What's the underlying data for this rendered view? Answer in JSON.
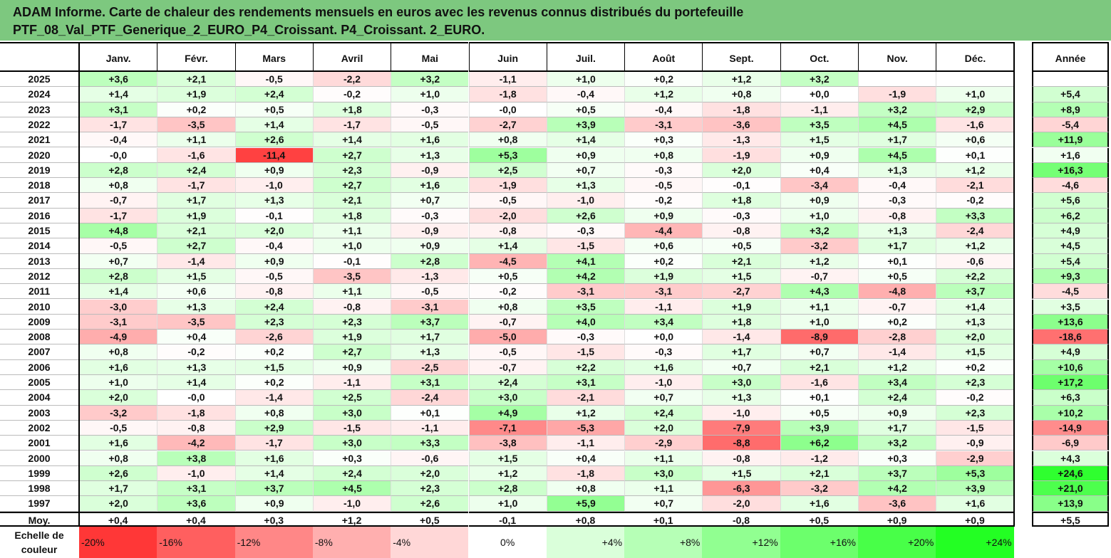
{
  "header": {
    "title_line1": "ADAM Informe. Carte de chaleur des rendements mensuels en euros avec les revenus connus distribués du portefeuille",
    "title_line2": "PTF_08_Val_PTF_Generique_2_EURO_P4_Croissant. P4_Croissant. 2_EURO."
  },
  "chart_data": {
    "type": "heatmap",
    "columns": [
      "Janv.",
      "Févr.",
      "Mars",
      "Avril",
      "Mai",
      "Juin",
      "Juil.",
      "Août",
      "Sept.",
      "Oct.",
      "Nov.",
      "Déc."
    ],
    "annual_label": "Année",
    "rows": [
      {
        "year": "2025",
        "m": [
          "+3,6",
          "+2,1",
          "-0,5",
          "-2,2",
          "+3,2",
          "-1,1",
          "+1,0",
          "+0,2",
          "+1,2",
          "+3,2",
          "",
          ""
        ],
        "y": ""
      },
      {
        "year": "2024",
        "m": [
          "+1,4",
          "+1,9",
          "+2,4",
          "-0,2",
          "+1,0",
          "-1,8",
          "-0,4",
          "+1,2",
          "+0,8",
          "+0,0",
          "-1,9",
          "+1,0"
        ],
        "y": "+5,4"
      },
      {
        "year": "2023",
        "m": [
          "+3,1",
          "+0,2",
          "+0,5",
          "+1,8",
          "-0,3",
          "-0,0",
          "+0,5",
          "-0,4",
          "-1,8",
          "-1,1",
          "+3,2",
          "+2,9"
        ],
        "y": "+8,9"
      },
      {
        "year": "2022",
        "m": [
          "-1,7",
          "-3,5",
          "+1,4",
          "-1,7",
          "-0,5",
          "-2,7",
          "+3,9",
          "-3,1",
          "-3,6",
          "+3,5",
          "+4,5",
          "-1,6"
        ],
        "y": "-5,4"
      },
      {
        "year": "2021",
        "m": [
          "-0,4",
          "+1,1",
          "+2,6",
          "+1,4",
          "+1,6",
          "+0,8",
          "+1,4",
          "+0,3",
          "-1,3",
          "+1,5",
          "+1,7",
          "+0,6"
        ],
        "y": "+11,9"
      },
      {
        "year": "2020",
        "m": [
          "-0,0",
          "-1,6",
          "-11,4",
          "+2,7",
          "+1,3",
          "+5,3",
          "+0,9",
          "+0,8",
          "-1,9",
          "+0,9",
          "+4,5",
          "+0,1"
        ],
        "y": "+1,6"
      },
      {
        "year": "2019",
        "m": [
          "+2,8",
          "+2,4",
          "+0,9",
          "+2,3",
          "-0,9",
          "+2,5",
          "+0,7",
          "-0,3",
          "+2,0",
          "+0,4",
          "+1,3",
          "+1,2"
        ],
        "y": "+16,3"
      },
      {
        "year": "2018",
        "m": [
          "+0,8",
          "-1,7",
          "-1,0",
          "+2,7",
          "+1,6",
          "-1,9",
          "+1,3",
          "-0,5",
          "-0,1",
          "-3,4",
          "-0,4",
          "-2,1"
        ],
        "y": "-4,6"
      },
      {
        "year": "2017",
        "m": [
          "-0,7",
          "+1,7",
          "+1,3",
          "+2,1",
          "+0,7",
          "-0,5",
          "-1,0",
          "-0,2",
          "+1,8",
          "+0,9",
          "-0,3",
          "-0,2"
        ],
        "y": "+5,6"
      },
      {
        "year": "2016",
        "m": [
          "-1,7",
          "+1,9",
          "-0,1",
          "+1,8",
          "-0,3",
          "-2,0",
          "+2,6",
          "+0,9",
          "-0,3",
          "+1,0",
          "-0,8",
          "+3,3"
        ],
        "y": "+6,2"
      },
      {
        "year": "2015",
        "m": [
          "+4,8",
          "+2,1",
          "+2,0",
          "+1,1",
          "-0,9",
          "-0,8",
          "-0,3",
          "-4,4",
          "-0,8",
          "+3,2",
          "+1,3",
          "-2,4"
        ],
        "y": "+4,9"
      },
      {
        "year": "2014",
        "m": [
          "-0,5",
          "+2,7",
          "-0,4",
          "+1,0",
          "+0,9",
          "+1,4",
          "-1,5",
          "+0,6",
          "+0,5",
          "-3,2",
          "+1,7",
          "+1,2"
        ],
        "y": "+4,5"
      },
      {
        "year": "2013",
        "m": [
          "+0,7",
          "-1,4",
          "+0,9",
          "-0,1",
          "+2,8",
          "-4,5",
          "+4,1",
          "+0,2",
          "+2,1",
          "+1,2",
          "+0,1",
          "-0,6"
        ],
        "y": "+5,4"
      },
      {
        "year": "2012",
        "m": [
          "+2,8",
          "+1,5",
          "-0,5",
          "-3,5",
          "-1,3",
          "+0,5",
          "+4,2",
          "+1,9",
          "+1,5",
          "-0,7",
          "+0,5",
          "+2,2"
        ],
        "y": "+9,3"
      },
      {
        "year": "2011",
        "m": [
          "+1,4",
          "+0,6",
          "-0,8",
          "+1,1",
          "-0,5",
          "-0,2",
          "-3,1",
          "-3,1",
          "-2,7",
          "+4,3",
          "-4,8",
          "+3,7"
        ],
        "y": "-4,5"
      },
      {
        "year": "2010",
        "m": [
          "-3,0",
          "+1,3",
          "+2,4",
          "-0,8",
          "-3,1",
          "+0,8",
          "+3,5",
          "-1,1",
          "+1,9",
          "+1,1",
          "-0,7",
          "+1,4"
        ],
        "y": "+3,5"
      },
      {
        "year": "2009",
        "m": [
          "-3,1",
          "-3,5",
          "+2,3",
          "+2,3",
          "+3,7",
          "-0,7",
          "+4,0",
          "+3,4",
          "+1,8",
          "+1,0",
          "+0,2",
          "+1,3"
        ],
        "y": "+13,6"
      },
      {
        "year": "2008",
        "m": [
          "-4,9",
          "+0,4",
          "-2,6",
          "+1,9",
          "+1,7",
          "-5,0",
          "-0,3",
          "+0,0",
          "-1,4",
          "-8,9",
          "-2,8",
          "+2,0"
        ],
        "y": "-18,6"
      },
      {
        "year": "2007",
        "m": [
          "+0,8",
          "-0,2",
          "+0,2",
          "+2,7",
          "+1,3",
          "-0,5",
          "-1,5",
          "-0,3",
          "+1,7",
          "+0,7",
          "-1,4",
          "+1,5"
        ],
        "y": "+4,9"
      },
      {
        "year": "2006",
        "m": [
          "+1,6",
          "+1,3",
          "+1,5",
          "+0,9",
          "-2,5",
          "-0,7",
          "+2,2",
          "+1,6",
          "+0,7",
          "+2,1",
          "+1,2",
          "+0,2"
        ],
        "y": "+10,6"
      },
      {
        "year": "2005",
        "m": [
          "+1,0",
          "+1,4",
          "+0,2",
          "-1,1",
          "+3,1",
          "+2,4",
          "+3,1",
          "-1,0",
          "+3,0",
          "-1,6",
          "+3,4",
          "+2,3"
        ],
        "y": "+17,2"
      },
      {
        "year": "2004",
        "m": [
          "+2,0",
          "-0,0",
          "-1,4",
          "+2,5",
          "-2,4",
          "+3,0",
          "-2,1",
          "+0,7",
          "+1,3",
          "+0,1",
          "+2,4",
          "-0,2"
        ],
        "y": "+6,3"
      },
      {
        "year": "2003",
        "m": [
          "-3,2",
          "-1,8",
          "+0,8",
          "+3,0",
          "+0,1",
          "+4,9",
          "+1,2",
          "+2,4",
          "-1,0",
          "+0,5",
          "+0,9",
          "+2,3"
        ],
        "y": "+10,2"
      },
      {
        "year": "2002",
        "m": [
          "-0,5",
          "-0,8",
          "+2,9",
          "-1,5",
          "-1,1",
          "-7,1",
          "-5,3",
          "+2,0",
          "-7,9",
          "+3,9",
          "+1,7",
          "-1,5"
        ],
        "y": "-14,9"
      },
      {
        "year": "2001",
        "m": [
          "+1,6",
          "-4,2",
          "-1,7",
          "+3,0",
          "+3,3",
          "-3,8",
          "-1,1",
          "-2,9",
          "-8,8",
          "+6,2",
          "+3,2",
          "-0,9"
        ],
        "y": "-6,9"
      },
      {
        "year": "2000",
        "m": [
          "+0,8",
          "+3,8",
          "+1,6",
          "+0,3",
          "-0,6",
          "+1,5",
          "+0,4",
          "+1,1",
          "-0,8",
          "-1,2",
          "+0,3",
          "-2,9"
        ],
        "y": "+4,3"
      },
      {
        "year": "1999",
        "m": [
          "+2,6",
          "-1,0",
          "+1,4",
          "+2,4",
          "+2,0",
          "+1,2",
          "-1,8",
          "+3,0",
          "+1,5",
          "+2,1",
          "+3,7",
          "+5,3"
        ],
        "y": "+24,6"
      },
      {
        "year": "1998",
        "m": [
          "+1,7",
          "+3,1",
          "+3,7",
          "+4,5",
          "+2,3",
          "+2,8",
          "+0,8",
          "+1,1",
          "-6,3",
          "-3,2",
          "+4,2",
          "+3,9"
        ],
        "y": "+21,0"
      },
      {
        "year": "1997",
        "m": [
          "+2,0",
          "+3,6",
          "+0,9",
          "-1,0",
          "+2,6",
          "+1,0",
          "+5,9",
          "+0,7",
          "-2,0",
          "+1,6",
          "-3,6",
          "+1,6"
        ],
        "y": "+13,9"
      }
    ],
    "average": {
      "label": "Moy.",
      "m": [
        "+0,4",
        "+0,4",
        "+0,3",
        "+1,2",
        "+0,5",
        "-0,1",
        "+0,8",
        "+0,1",
        "-0,8",
        "+0,5",
        "+0,9",
        "+0,9"
      ],
      "y": "+5,5"
    },
    "scale": {
      "label_line1": "Echelle de",
      "label_line2": "couleur",
      "steps": [
        "-20%",
        "-16%",
        "-12%",
        "-8%",
        "-4%",
        "0%",
        "+4%",
        "+8%",
        "+12%",
        "+16%",
        "+20%",
        "+24%"
      ]
    },
    "colors": {
      "negative_max": "#ff0000",
      "positive_max": "#22e622",
      "neutral": "#ffffff"
    }
  }
}
